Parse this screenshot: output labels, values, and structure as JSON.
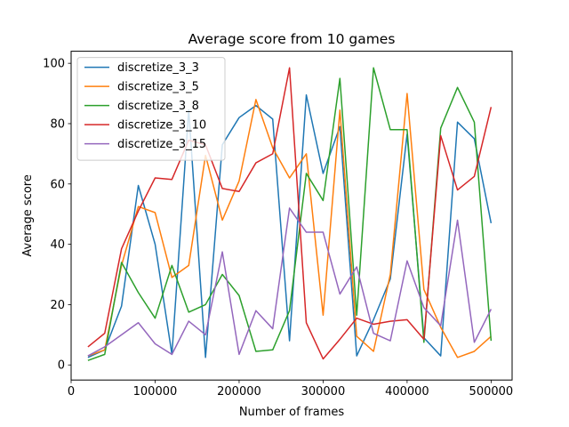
{
  "chart_data": {
    "type": "line",
    "title": "Average score from 10 games",
    "xlabel": "Number of frames",
    "ylabel": "Average score",
    "xlim": [
      0,
      525000
    ],
    "ylim": [
      -5,
      104
    ],
    "xticks": [
      0,
      100000,
      200000,
      300000,
      400000,
      500000
    ],
    "xtick_labels": [
      "0",
      "100000",
      "200000",
      "300000",
      "400000",
      "500000"
    ],
    "yticks": [
      0,
      20,
      40,
      60,
      80,
      100
    ],
    "ytick_labels": [
      "0",
      "20",
      "40",
      "60",
      "80",
      "100"
    ],
    "grid": false,
    "legend_position": "top-left",
    "x": [
      20000,
      40000,
      60000,
      80000,
      100000,
      120000,
      140000,
      160000,
      180000,
      200000,
      220000,
      240000,
      260000,
      280000,
      300000,
      320000,
      340000,
      360000,
      380000,
      400000,
      420000,
      440000,
      460000,
      480000,
      500000
    ],
    "series": [
      {
        "name": "discretize_3_3",
        "color": "#1f77b4",
        "values": [
          2.5,
          5,
          19.5,
          59.5,
          40,
          3.5,
          84.5,
          2.5,
          73,
          82,
          86,
          81.5,
          8,
          89.5,
          63.5,
          79,
          3,
          15,
          28.5,
          76.5,
          9,
          3,
          80.5,
          75,
          47
        ]
      },
      {
        "name": "discretize_3_5",
        "color": "#ff7f0e",
        "values": [
          3,
          5,
          33,
          52.5,
          50.5,
          29,
          33,
          69.5,
          48,
          61,
          88,
          72,
          62,
          70,
          16.5,
          84.5,
          9.5,
          4.5,
          30,
          90,
          25,
          12.5,
          2.5,
          4.5,
          9.5
        ]
      },
      {
        "name": "discretize_3_8",
        "color": "#2ca02c",
        "values": [
          1.5,
          3.5,
          34,
          24,
          15.5,
          33,
          17.5,
          20,
          30,
          23,
          4.5,
          5,
          18,
          63.5,
          54.5,
          95,
          16.5,
          98.5,
          78,
          78,
          7.5,
          78.5,
          92,
          80.5,
          8
        ]
      },
      {
        "name": "discretize_3_10",
        "color": "#d62728",
        "values": [
          6,
          10.5,
          38.5,
          51,
          62,
          61.5,
          74.5,
          73,
          58.5,
          57.5,
          67,
          70,
          98.5,
          14,
          2,
          8.5,
          15.5,
          13.5,
          14.5,
          15,
          8.5,
          76,
          58,
          62.5,
          85.5
        ]
      },
      {
        "name": "discretize_3_15",
        "color": "#9467bd",
        "values": [
          3,
          6,
          10,
          14,
          7,
          3.5,
          14.5,
          10,
          37.5,
          3.5,
          18,
          12,
          52,
          44,
          44,
          23.5,
          32.5,
          10.5,
          8,
          34.5,
          19,
          13,
          48,
          7.5,
          18.5
        ]
      }
    ]
  }
}
